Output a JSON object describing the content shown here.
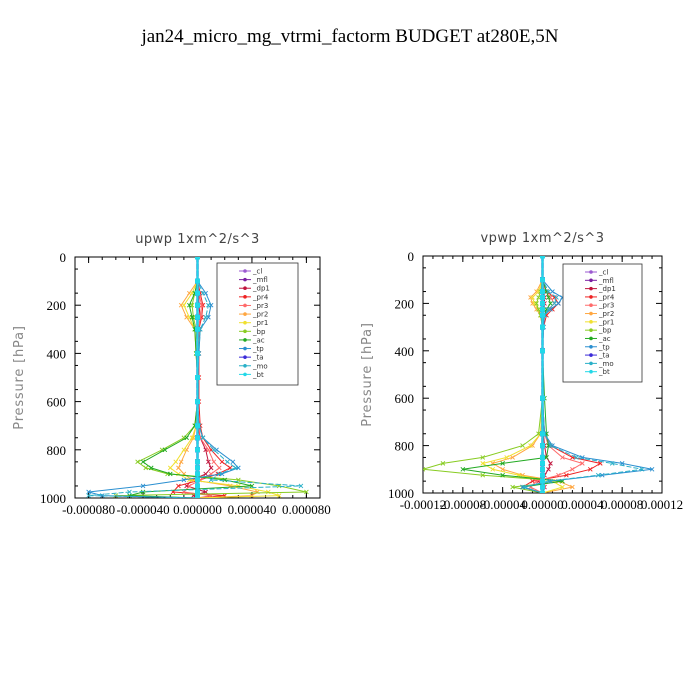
{
  "figure": {
    "title": "jan24_micro_mg_vtrmi_factorm  BUDGET at280E,5N"
  },
  "colors": {
    "_cl": "#9b59d0",
    "_mfl": "#7a1fa2",
    "_dp1": "#c0143c",
    "_pr4": "#ee2222",
    "_pr3": "#ff6a6a",
    "_pr2": "#ffa640",
    "_pr1": "#f0e030",
    "_bp": "#88cc22",
    "_ac": "#22aa22",
    "_tp": "#2a8fd0",
    "_ta": "#3a2ad8",
    "_mo": "#2ab0c8",
    "_bt": "#22d8e8"
  },
  "chart_data": [
    {
      "type": "line",
      "title": "upwp   1xm^2/s^3",
      "ylabel": "Pressure [hPa]",
      "xlabel": "",
      "xlim": [
        -9e-05,
        9e-05
      ],
      "ylim": [
        1000,
        0
      ],
      "xticks": [
        -8e-05,
        -4e-05,
        0.0,
        4e-05,
        8e-05
      ],
      "xtick_labels": [
        "-0.000080",
        "-0.000040",
        "0.000000",
        "0.000040",
        "0.000080"
      ],
      "yticks": [
        0,
        200,
        400,
        600,
        800,
        1000
      ],
      "ytick_labels": [
        "0",
        "200",
        "400",
        "600",
        "800",
        "1000"
      ],
      "legend": [
        "_cl",
        "_mfl",
        "_dp1",
        "_pr4",
        "_pr3",
        "_pr2",
        "_pr1",
        "_bp",
        "_ac",
        "_tp",
        "_ta",
        "_mo",
        "_bt"
      ],
      "legend_position": "top-right",
      "y": [
        0,
        100,
        150,
        200,
        250,
        300,
        400,
        500,
        600,
        700,
        750,
        800,
        850,
        875,
        900,
        925,
        950,
        975,
        990,
        1000
      ],
      "series": [
        {
          "name": "_cl",
          "values": [
            0,
            0,
            0,
            0,
            0,
            0,
            0,
            0,
            0,
            0,
            0,
            0,
            0,
            0,
            0,
            0,
            0,
            0,
            0,
            0
          ]
        },
        {
          "name": "_mfl",
          "values": [
            0,
            0,
            0,
            0,
            0,
            0,
            0,
            0,
            0,
            0,
            0,
            0,
            0,
            0,
            0,
            0,
            0,
            0,
            0,
            0
          ]
        },
        {
          "name": "_dp1",
          "values": [
            0,
            0,
            1e-06,
            1e-06,
            2e-06,
            1e-06,
            1e-06,
            0,
            0,
            0,
            2e-06,
            6e-06,
            8e-06,
            1e-05,
            6e-06,
            -4e-06,
            -8e-06,
            6e-06,
            -3e-06,
            0
          ]
        },
        {
          "name": "_pr4",
          "values": [
            0,
            0,
            2e-06,
            4e-06,
            3e-06,
            1e-06,
            1e-06,
            1e-06,
            1e-06,
            2e-06,
            4e-06,
            1e-05,
            1.8e-05,
            2.4e-05,
            1.5e-05,
            2e-06,
            -1.4e-05,
            -1.8e-05,
            2e-05,
            0
          ]
        },
        {
          "name": "_pr3",
          "values": [
            0,
            0,
            1e-06,
            3e-06,
            2e-06,
            1e-06,
            1e-06,
            0,
            0,
            1e-06,
            2e-06,
            8e-06,
            1.2e-05,
            1.6e-05,
            1e-05,
            2e-06,
            -6e-06,
            -1e-05,
            1e-05,
            0
          ]
        },
        {
          "name": "_pr2",
          "values": [
            0,
            0,
            -6e-06,
            -1.2e-05,
            -8e-06,
            -2e-06,
            -1e-06,
            0,
            0,
            -1e-06,
            -3e-06,
            -8e-06,
            -1.2e-05,
            -1.4e-05,
            -1e-05,
            -4e-06,
            2.4e-05,
            4.4e-05,
            4e-05,
            0
          ]
        },
        {
          "name": "_pr1",
          "values": [
            0,
            0,
            -4e-06,
            -1e-05,
            -6e-06,
            -2e-06,
            -1e-06,
            0,
            0,
            -1e-06,
            -4e-06,
            -1e-05,
            -1.6e-05,
            -2e-05,
            -1.4e-05,
            -6e-06,
            3e-05,
            5.2e-05,
            6e-05,
            0
          ]
        },
        {
          "name": "_bp",
          "values": [
            0,
            0,
            -2e-06,
            -4e-06,
            -3e-06,
            -1e-06,
            0,
            0,
            0,
            -2e-06,
            -1e-05,
            -2.6e-05,
            -4.4e-05,
            -3.8e-05,
            -2.2e-05,
            3e-05,
            6e-05,
            8e-05,
            -6e-05,
            0
          ]
        },
        {
          "name": "_ac",
          "values": [
            0,
            0,
            -2e-06,
            -6e-06,
            -4e-06,
            -2e-06,
            -1e-06,
            0,
            0,
            -2e-06,
            -8e-06,
            -2.4e-05,
            -4e-05,
            -3.4e-05,
            -2e-05,
            2e-05,
            4e-05,
            -4e-05,
            -5e-05,
            0
          ]
        },
        {
          "name": "_tp",
          "values": [
            0,
            0,
            6e-06,
            1e-05,
            8e-06,
            2e-06,
            1e-06,
            0,
            0,
            1e-06,
            4e-06,
            1.4e-05,
            2.6e-05,
            3e-05,
            1.8e-05,
            -1e-05,
            -4e-05,
            -8e-05,
            -7e-05,
            0
          ]
        },
        {
          "name": "_ta",
          "values": [
            0,
            0,
            0,
            0,
            0,
            0,
            0,
            0,
            0,
            0,
            0,
            0,
            0,
            0,
            0,
            0,
            0,
            0,
            0,
            0
          ]
        },
        {
          "name": "_mo",
          "values": [
            0,
            0,
            4e-06,
            8e-06,
            6e-06,
            2e-06,
            1e-06,
            0,
            0,
            1e-06,
            4e-06,
            1.2e-05,
            2.2e-05,
            2.8e-05,
            1.6e-05,
            1e-05,
            7.6e-05,
            -5e-05,
            -8e-05,
            0
          ]
        },
        {
          "name": "_bt",
          "values": [
            0,
            0,
            0,
            0,
            0,
            0,
            0,
            0,
            0,
            0,
            0,
            0,
            0,
            0,
            0,
            0,
            0,
            0,
            0,
            0
          ]
        }
      ]
    },
    {
      "type": "line",
      "title": "vpwp   1xm^2/s^3",
      "ylabel": "Pressure [hPa]",
      "xlabel": "",
      "xlim": [
        -0.00012,
        0.00012
      ],
      "ylim": [
        1000,
        0
      ],
      "xticks": [
        -0.00012,
        -8e-05,
        -4e-05,
        0.0,
        4e-05,
        8e-05,
        0.00012
      ],
      "xtick_labels": [
        "-0.00012",
        "-0.00008",
        "-0.00004",
        "0.00000",
        "0.00004",
        "0.00008",
        "0.00012"
      ],
      "yticks": [
        0,
        200,
        400,
        600,
        800,
        1000
      ],
      "ytick_labels": [
        "0",
        "200",
        "400",
        "600",
        "800",
        "1000"
      ],
      "legend": [
        "_cl",
        "_mfl",
        "_dp1",
        "_pr4",
        "_pr3",
        "_pr2",
        "_pr1",
        "_bp",
        "_ac",
        "_tp",
        "_ta",
        "_mo",
        "_bt"
      ],
      "legend_position": "top-right",
      "y": [
        0,
        100,
        150,
        175,
        200,
        225,
        250,
        300,
        400,
        600,
        750,
        800,
        850,
        875,
        900,
        925,
        950,
        975,
        1000
      ],
      "series": [
        {
          "name": "_cl",
          "values": [
            0,
            0,
            0,
            0,
            0,
            0,
            0,
            0,
            0,
            0,
            0,
            0,
            0,
            0,
            0,
            0,
            0,
            0,
            0
          ]
        },
        {
          "name": "_mfl",
          "values": [
            0,
            0,
            0,
            0,
            0,
            0,
            0,
            0,
            0,
            0,
            0,
            0,
            0,
            0,
            0,
            0,
            0,
            0,
            0
          ]
        },
        {
          "name": "_dp1",
          "values": [
            0,
            0,
            1e-06,
            2e-06,
            2e-06,
            1e-06,
            0,
            0,
            0,
            0,
            1e-06,
            2e-06,
            4e-06,
            8e-06,
            6e-06,
            2e-06,
            -4e-06,
            2e-06,
            0
          ]
        },
        {
          "name": "_pr4",
          "values": [
            0,
            0,
            4e-06,
            1.2e-05,
            1.6e-05,
            1e-05,
            4e-06,
            1e-06,
            0,
            0,
            2e-06,
            8e-06,
            3e-05,
            5.8e-05,
            4.8e-05,
            2.4e-05,
            -1e-05,
            -2e-05,
            0
          ]
        },
        {
          "name": "_pr3",
          "values": [
            0,
            0,
            3e-06,
            8e-06,
            1.2e-05,
            6e-06,
            2e-06,
            1e-06,
            0,
            0,
            2e-06,
            6e-06,
            2e-05,
            4e-05,
            3e-05,
            1.6e-05,
            -6e-06,
            -1.2e-05,
            0
          ]
        },
        {
          "name": "_pr2",
          "values": [
            0,
            0,
            -6e-06,
            -1.2e-05,
            -1e-05,
            -6e-06,
            -2e-06,
            0,
            0,
            0,
            -2e-06,
            -1e-05,
            -3e-05,
            -5e-05,
            -4e-05,
            -2e-05,
            1.6e-05,
            3e-05,
            0
          ]
        },
        {
          "name": "_pr1",
          "values": [
            0,
            0,
            -4e-06,
            -1e-05,
            -8e-06,
            -4e-06,
            -1e-06,
            0,
            0,
            0,
            -2e-06,
            -1.2e-05,
            -3.6e-05,
            -6e-05,
            -5e-05,
            -2.4e-05,
            1e-05,
            2e-05,
            0
          ]
        },
        {
          "name": "_bp",
          "values": [
            0,
            0,
            -2e-06,
            -4e-06,
            -6e-06,
            -4e-06,
            -2e-06,
            0,
            0,
            0,
            -4e-06,
            -2e-05,
            -6e-05,
            -0.0001,
            -0.00012,
            -6e-05,
            2e-05,
            -3e-05,
            0
          ]
        },
        {
          "name": "_ac",
          "values": [
            0,
            0,
            4e-06,
            6e-06,
            8e-06,
            4e-06,
            2e-06,
            0,
            0,
            2e-06,
            4e-06,
            6e-06,
            4e-06,
            -4e-05,
            -8e-05,
            -4e-05,
            2e-05,
            -2e-05,
            0
          ]
        },
        {
          "name": "_tp",
          "values": [
            0,
            0,
            1e-05,
            2e-05,
            1.6e-05,
            8e-06,
            2e-06,
            1e-06,
            0,
            0,
            2e-06,
            1e-05,
            4e-05,
            8e-05,
            0.00011,
            6e-05,
            8e-06,
            -2e-05,
            0
          ]
        },
        {
          "name": "_ta",
          "values": [
            0,
            0,
            0,
            0,
            0,
            0,
            0,
            0,
            0,
            0,
            0,
            0,
            0,
            0,
            0,
            0,
            0,
            0,
            0
          ]
        },
        {
          "name": "_mo",
          "values": [
            0,
            0,
            6e-06,
            1.4e-05,
            1.2e-05,
            6e-06,
            2e-06,
            0,
            0,
            0,
            2e-06,
            8e-06,
            3.4e-05,
            7e-05,
            0.0001,
            5.6e-05,
            6e-06,
            -1.8e-05,
            0
          ]
        },
        {
          "name": "_bt",
          "values": [
            0,
            0,
            0,
            0,
            0,
            0,
            0,
            0,
            0,
            0,
            0,
            0,
            0,
            0,
            0,
            0,
            0,
            0,
            0
          ]
        }
      ]
    }
  ]
}
